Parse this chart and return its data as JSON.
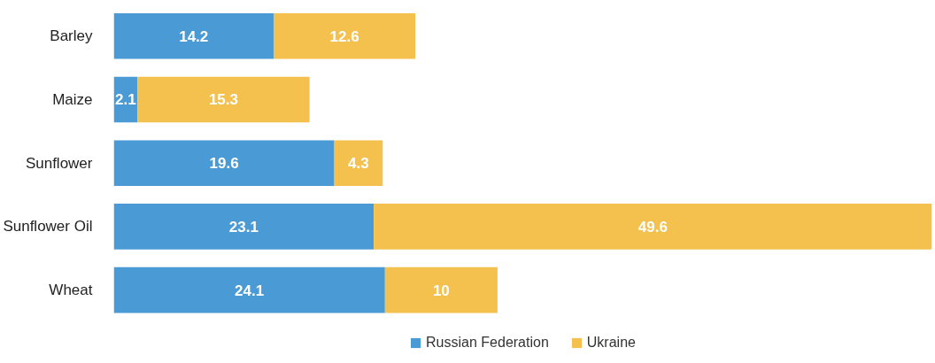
{
  "chart_data": {
    "type": "bar",
    "orientation": "horizontal",
    "stacked": true,
    "data_labels": true,
    "legend": "bottom",
    "categories": [
      "Barley",
      "Maize",
      "Sunflower",
      "Sunflower Oil",
      "Wheat"
    ],
    "series": [
      {
        "name": "Russian Federation",
        "color": "#4a9bd5",
        "values": [
          14.2,
          2.1,
          19.6,
          23.1,
          24.1
        ]
      },
      {
        "name": "Ukraine",
        "color": "#f4c04e",
        "values": [
          12.6,
          15.3,
          4.3,
          49.6,
          10
        ]
      }
    ]
  }
}
